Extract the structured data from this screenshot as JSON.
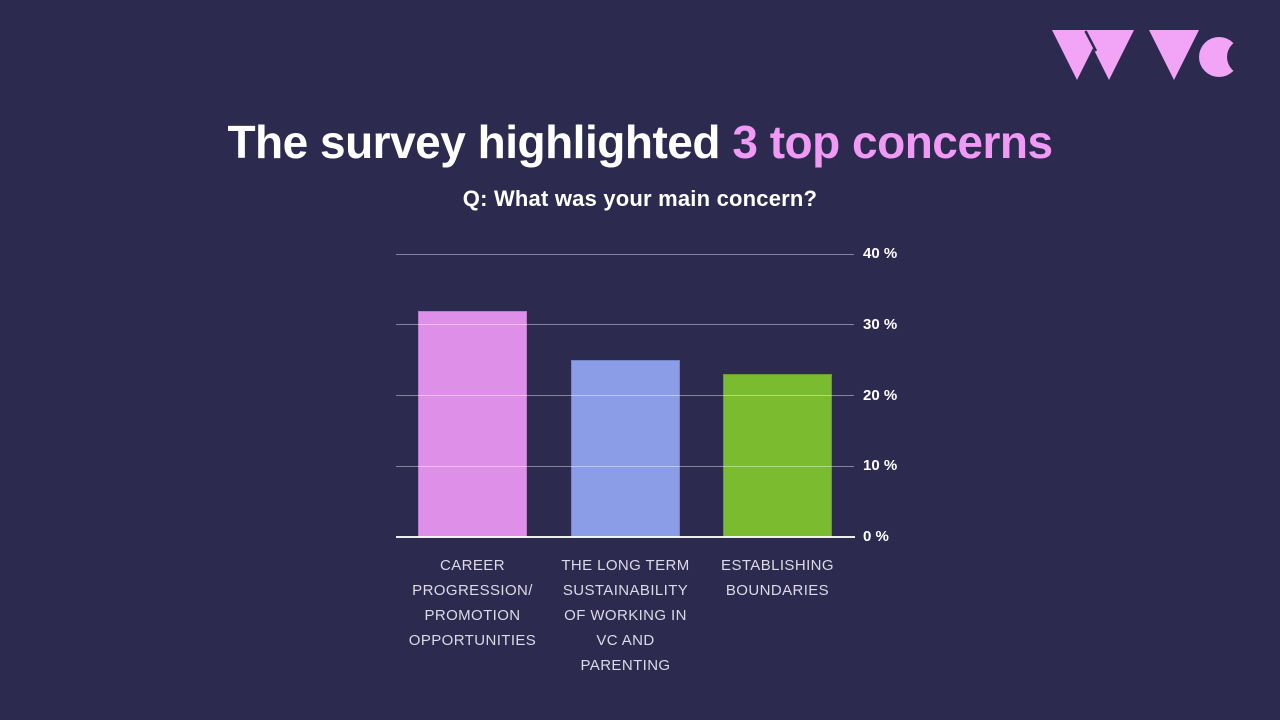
{
  "slide": {
    "background_color": "#2d2a50",
    "accent_pink": "#f09af5"
  },
  "logo": {
    "text": "WVC",
    "color": "#f2a4f6"
  },
  "header": {
    "title_white": "The survey highlighted",
    "title_pink": "3 top concerns"
  },
  "chart_data": {
    "type": "bar",
    "title": "Q: What was your main concern?",
    "categories": [
      "CAREER\nPROGRESSION/\nPROMOTION\nOPPORTUNITIES",
      "THE LONG TERM\nSUSTAINABILITY\nOF WORKING IN\nVC AND\nPARENTING",
      "ESTABLISHING\nBOUNDARIES"
    ],
    "values": [
      32,
      25,
      23
    ],
    "unit": "%",
    "bar_colors": [
      "#de90e9",
      "#8b9de7",
      "#7abb2f"
    ],
    "ylim": [
      0,
      40
    ],
    "yticks": [
      0,
      10,
      20,
      30,
      40
    ],
    "ytick_labels": [
      "0 %",
      "10 %",
      "20 %",
      "30 %",
      "40 %"
    ],
    "ytick_side": "right",
    "grid": true,
    "legend": false
  }
}
